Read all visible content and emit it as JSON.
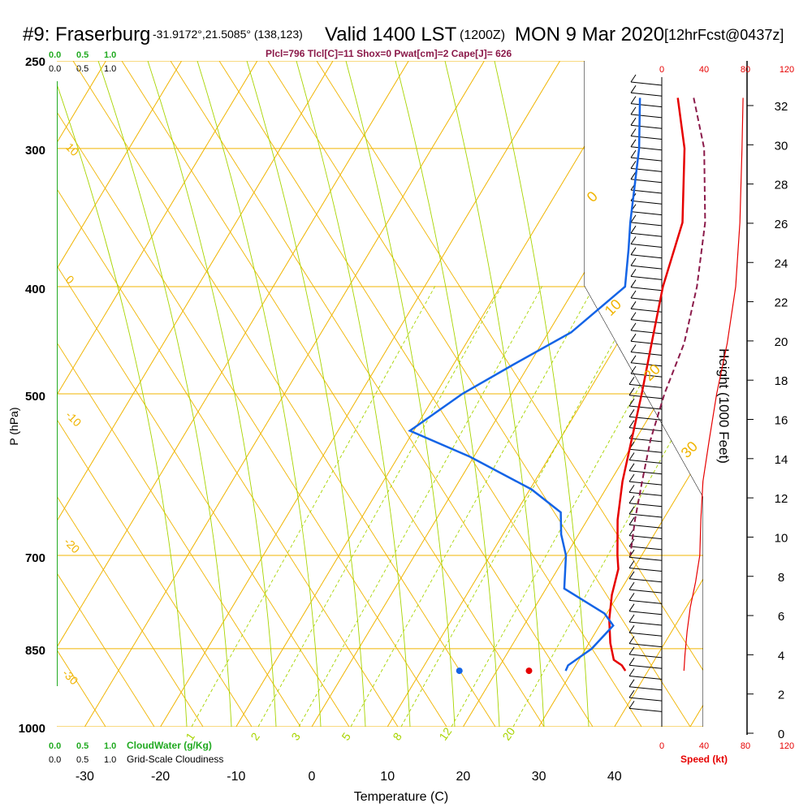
{
  "header": {
    "station": "#9: Fraserburg",
    "coords": "-31.9172°,21.5085° (138,123)",
    "valid": "Valid 1400 LST",
    "utc": "(1200Z)",
    "date": "MON 9 Mar 2020",
    "forecast": "[12hrFcst@0437z]",
    "indices": "Plcl=796 Tlcl[C]=11 Shox=0 Pwat[cm]=2 Cape[J]= 626"
  },
  "colors": {
    "isotherm": "#f0b400",
    "dry_adiabat": "#f0b400",
    "moist_adiabat": "#a8d400",
    "mixing_ratio": "#a8d400",
    "temperature": "#e60000",
    "dewpoint": "#1464e6",
    "parcel": "#8b1a4a",
    "cloud_green": "#22aa22",
    "speed_red": "#e60000"
  },
  "chart_data": {
    "type": "line",
    "title": "Skew-T log-P sounding",
    "xlabel": "Temperature (C)",
    "ylabel": "P (hPa)",
    "x_ticks": [
      -30,
      -20,
      -10,
      0,
      10,
      20,
      30,
      40
    ],
    "pressure_ticks": [
      250,
      300,
      400,
      500,
      700,
      850,
      1000
    ],
    "xlim": [
      -35,
      46
    ],
    "plim": [
      250,
      1000
    ],
    "series": [
      {
        "name": "Temperature",
        "pressure": [
          270,
          300,
          350,
          400,
          450,
          500,
          550,
          600,
          650,
          700,
          720,
          760,
          800,
          840,
          870,
          880,
          890
        ],
        "temp": [
          -1.5,
          3.4,
          9.0,
          11.5,
          14.5,
          17.2,
          19.5,
          21.6,
          24.0,
          26.8,
          28.0,
          29.2,
          30.8,
          32.8,
          34.6,
          36.1,
          37.0
        ]
      },
      {
        "name": "Dewpoint",
        "pressure": [
          270,
          300,
          350,
          370,
          400,
          440,
          470,
          500,
          540,
          570,
          610,
          640,
          670,
          700,
          750,
          790,
          810,
          850,
          880,
          890
        ],
        "temp": [
          -6.5,
          -2.6,
          2.1,
          4.0,
          6.5,
          3.0,
          -2.0,
          -6.5,
          -10.5,
          -0.5,
          10.2,
          15.9,
          17.7,
          20.0,
          22.4,
          29.7,
          31.8,
          30.8,
          29.0,
          29.1
        ]
      },
      {
        "name": "Parcel",
        "pressure": [
          270,
          300,
          350,
          400,
          450,
          500,
          550,
          600,
          650,
          700
        ],
        "temp": [
          0.6,
          6.0,
          12.0,
          16.0,
          18.8,
          20.2,
          22.0,
          24.2,
          26.3,
          28.5
        ]
      }
    ],
    "surface_points": [
      {
        "name": "surface-dewpoint",
        "x": 19.5,
        "pressure": 890
      },
      {
        "name": "surface-temperature",
        "x": 28.7,
        "pressure": 890
      }
    ],
    "isotherm_labels": [
      "10",
      "0",
      "-10",
      "-20",
      "-30"
    ],
    "right_isotherm_labels": [
      "0",
      "10",
      "20",
      "30"
    ],
    "mixing_ratio_labels": [
      "1",
      "2",
      "3",
      "5",
      "8",
      "12",
      "20"
    ],
    "mixing_ratio_values": [
      1,
      2,
      3,
      5,
      8,
      12,
      20
    ],
    "cloud_scale": {
      "top_green": [
        "0.0",
        "0.5",
        "1.0"
      ],
      "top_black": [
        "0.0",
        "0.5",
        "1.0"
      ],
      "bottom_green": [
        "0.0",
        "0.5",
        "1.0"
      ],
      "bottom_black": [
        "0.0",
        "0.5",
        "1.0"
      ],
      "cloudwater_label": "CloudWater (g/Kg)",
      "cloudiness_label": "Grid-Scale Cloudiness"
    },
    "wind_speed": {
      "label": "Speed (kt)",
      "top_ticks": [
        "0",
        "40",
        "80",
        "120"
      ],
      "bottom_ticks": [
        "0",
        "40",
        "80",
        "120"
      ],
      "profile_pressure": [
        270,
        300,
        350,
        400,
        450,
        500,
        550,
        600,
        650,
        700,
        740,
        780,
        820,
        860,
        890
      ],
      "profile_kt": [
        77,
        76,
        74,
        70,
        62,
        52,
        45,
        39,
        37,
        36,
        32,
        27,
        24,
        22,
        21
      ]
    },
    "height": {
      "label": "Height (1000 Feet)",
      "ticks": [
        "0",
        "2",
        "4",
        "6",
        "8",
        "10",
        "12",
        "14",
        "16",
        "18",
        "20",
        "22",
        "24",
        "26",
        "28",
        "30",
        "32"
      ]
    }
  }
}
